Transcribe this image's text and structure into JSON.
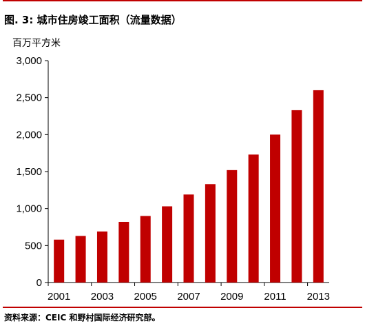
{
  "figure": {
    "number": "图. 3:",
    "title": "城市住房竣工面积（流量数据）"
  },
  "source": "资料来源：CEIC 和野村国际经济研究部。",
  "colors": {
    "bar": "#c00000",
    "rule": "#c00000"
  },
  "chart_data": {
    "type": "bar",
    "title": "城市住房竣工面积（流量数据）",
    "ylabel": "百万平方米",
    "xlabel": "",
    "categories": [
      "2001",
      "2002",
      "2003",
      "2004",
      "2005",
      "2006",
      "2007",
      "2008",
      "2009",
      "2010",
      "2011",
      "2012",
      "2013"
    ],
    "x_tick_labels": [
      "2001",
      "2003",
      "2005",
      "2007",
      "2009",
      "2011",
      "2013"
    ],
    "values": [
      580,
      630,
      690,
      820,
      900,
      1030,
      1190,
      1330,
      1520,
      1730,
      2000,
      2330,
      2600
    ],
    "ylim": [
      0,
      3000
    ],
    "yticks": [
      0,
      500,
      1000,
      1500,
      2000,
      2500,
      3000
    ],
    "ytick_labels": [
      "0",
      "500",
      "1,000",
      "1,500",
      "2,000",
      "2,500",
      "3,000"
    ],
    "grid": false,
    "legend": "none"
  }
}
